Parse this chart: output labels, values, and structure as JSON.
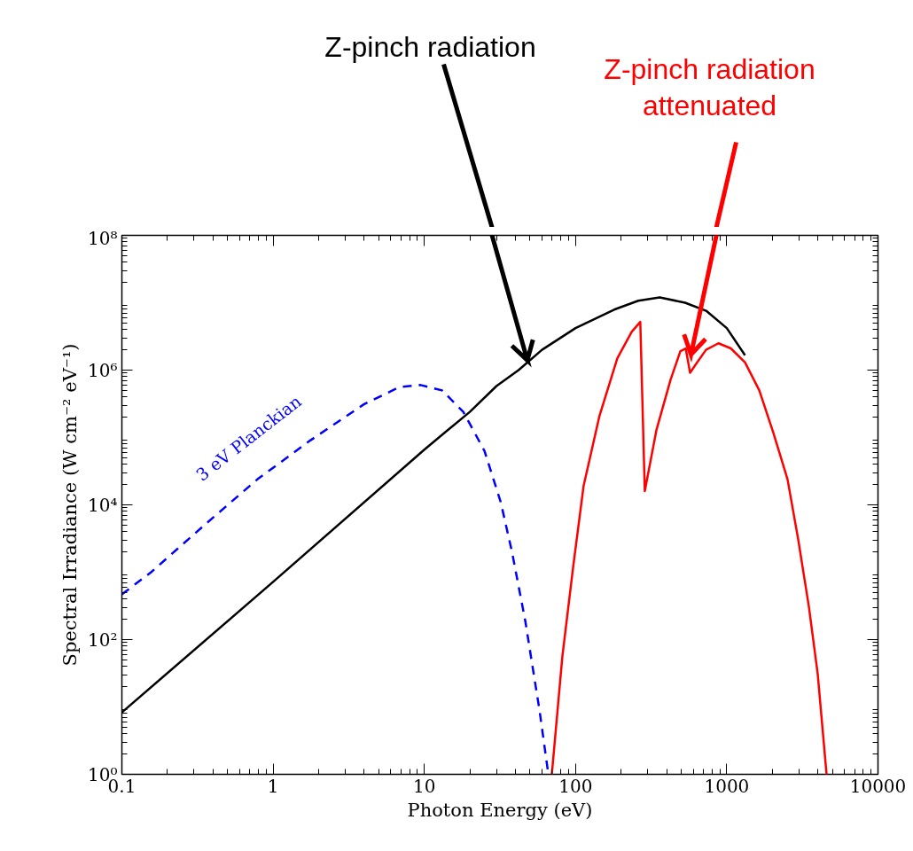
{
  "chart_data": {
    "type": "line",
    "xlabel": "Photon Energy (eV)",
    "ylabel": "Spectral Irradiance (W cm⁻² eV⁻¹)",
    "log": "xy",
    "xlim": [
      0.1,
      10000
    ],
    "ylim": [
      1,
      100000000
    ],
    "xticks": [
      0.1,
      1,
      10,
      100,
      1000,
      10000
    ],
    "yticks": [
      {
        "value": 1,
        "label": "10⁰"
      },
      {
        "value": 100,
        "label": "10²"
      },
      {
        "value": 10000,
        "label": "10⁴"
      },
      {
        "value": 1000000,
        "label": "10⁶"
      },
      {
        "value": 100000000,
        "label": "10⁸"
      }
    ],
    "grid": false,
    "legend": false,
    "marker": "none",
    "series": [
      {
        "name": "3 eV Planckian",
        "color": "#0000ff",
        "line_style": "dashed",
        "x": [
          0.1,
          0.156,
          0.351,
          0.789,
          1.77,
          3.98,
          6.84,
          9.45,
          13.1,
          18.1,
          25,
          32,
          38,
          46.5,
          57.7,
          66.1
        ],
        "values": [
          470,
          1000,
          5000,
          24000,
          91000,
          310000,
          560000,
          600000,
          500000,
          240000,
          63000,
          11000,
          2000,
          190,
          9.1,
          1
        ]
      },
      {
        "color": "#000000",
        "line_style": "solid",
        "x": [
          0.1,
          1,
          10,
          20,
          30,
          42,
          60,
          100,
          180,
          260,
          360,
          530,
          730,
          1000,
          1320
        ],
        "values": [
          8.3,
          720,
          66000,
          240000,
          580000,
          1000000,
          2000000,
          4200000,
          7900000,
          10700000,
          12000000,
          10000000,
          7600000,
          4200000,
          1660000
        ]
      },
      {
        "color": "#ff0000",
        "line_style": "solid",
        "x": [
          69.7,
          81.8,
          96.3,
          113,
          144,
          189,
          235,
          268,
          287,
          343,
          425,
          493,
          535,
          572,
          621,
          729,
          881,
          1064,
          1321,
          1641,
          2034,
          2522,
          2966,
          3490,
          3993,
          4570
        ],
        "values": [
          1,
          56,
          1170,
          19000,
          210000,
          1500000,
          3700000,
          5200000,
          16000,
          130000,
          720000,
          1900000,
          2100000,
          910000,
          1200000,
          2000000,
          2500000,
          2100000,
          1300000,
          500000,
          117000,
          24000,
          3100,
          310,
          31,
          1
        ]
      }
    ],
    "annotations": [
      {
        "text": "Z-pinch radiation",
        "x": 48,
        "y": 1400000
      },
      {
        "text": "Z-pinch radiation attenuated",
        "x": 580,
        "y": 1700000
      }
    ]
  }
}
